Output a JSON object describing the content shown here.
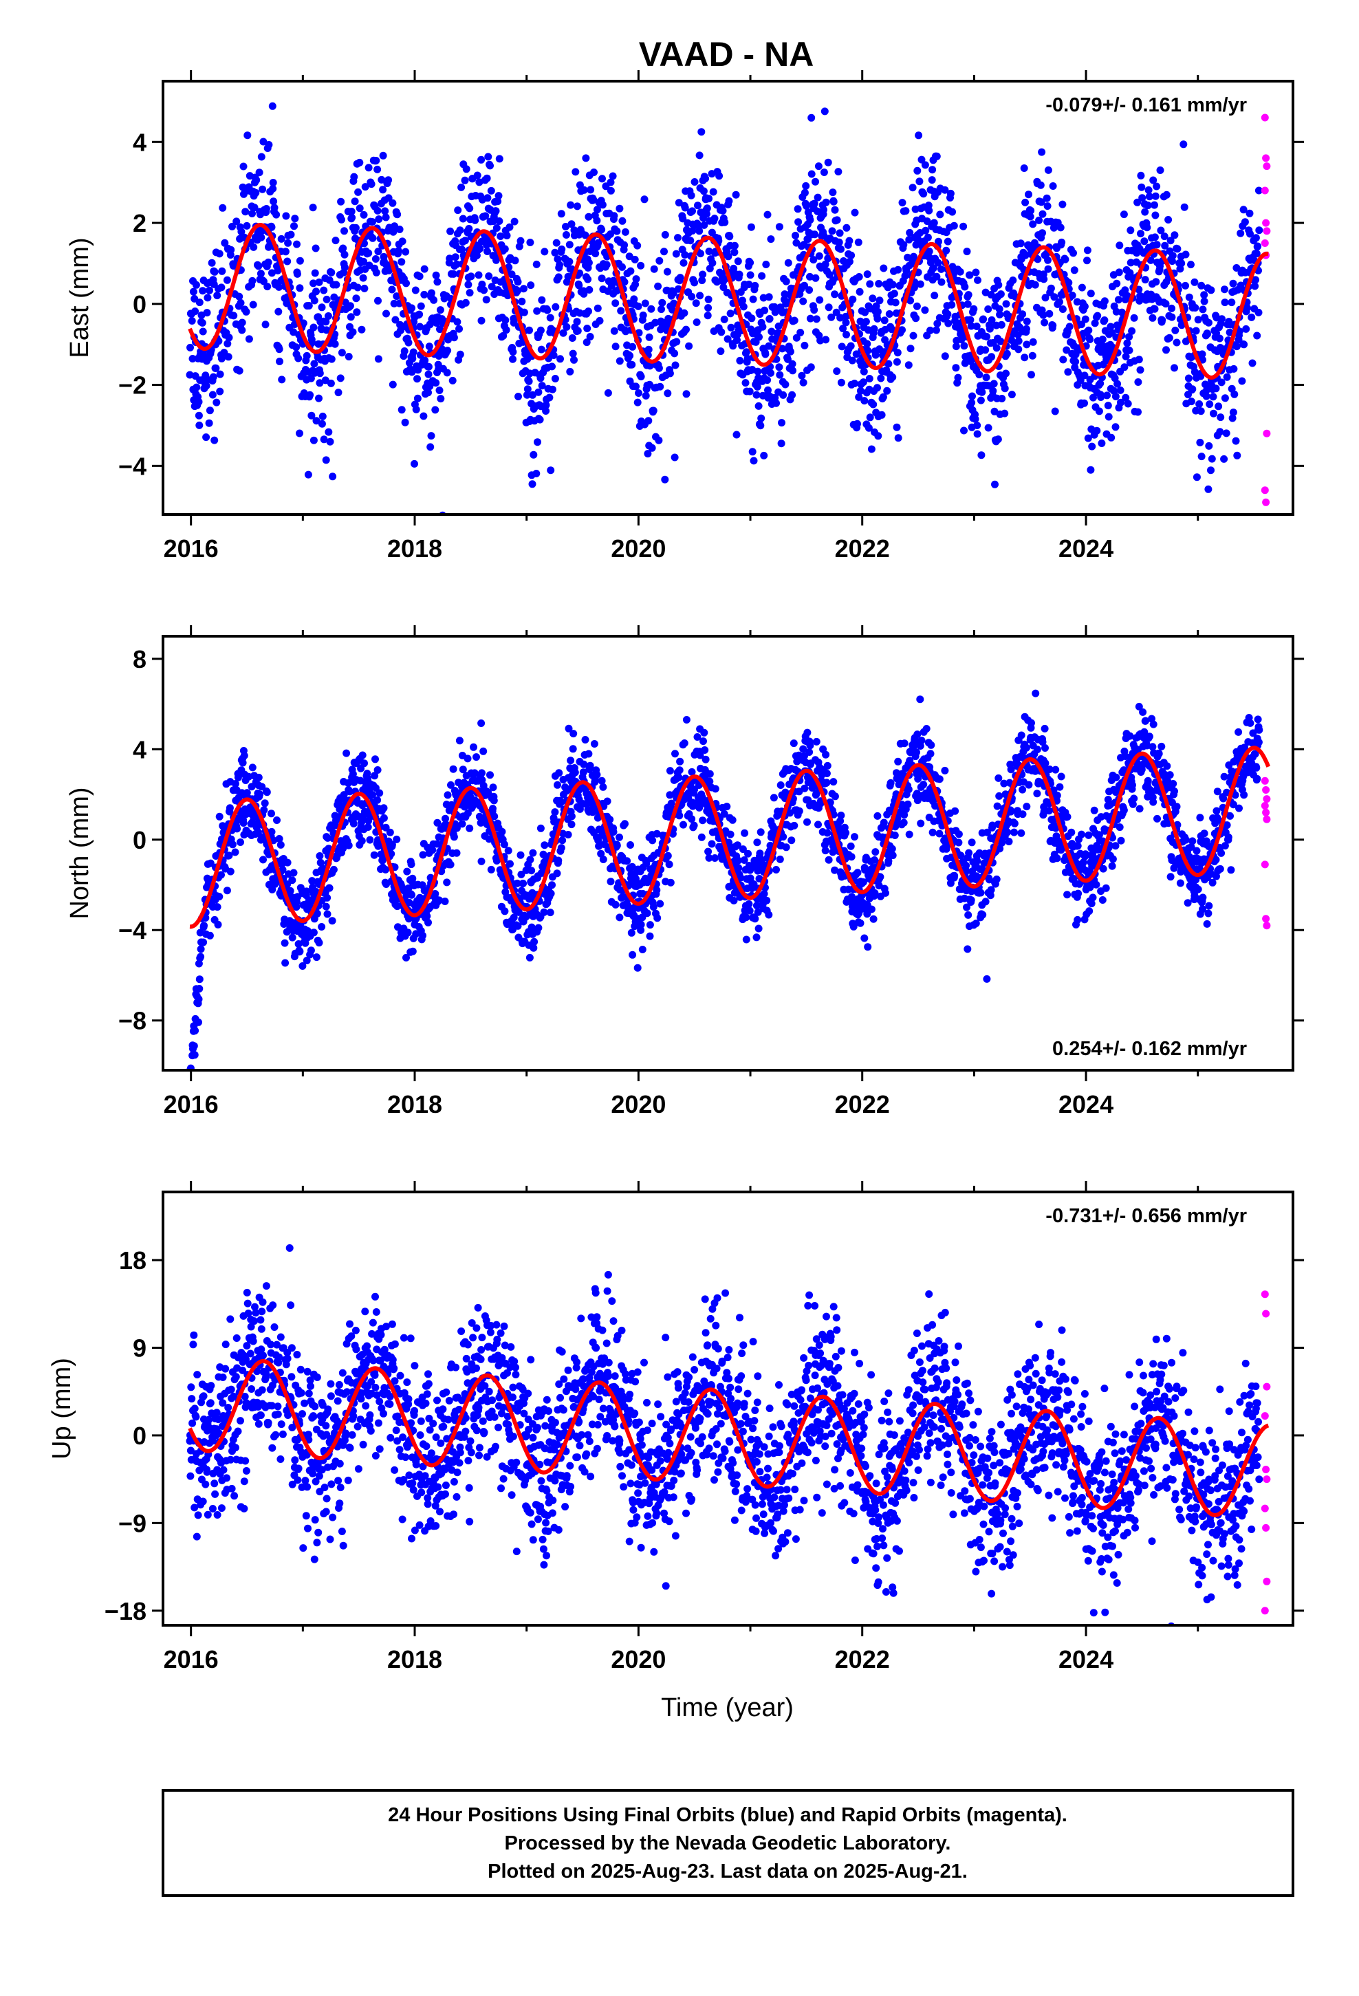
{
  "title": "VAAD - NA",
  "colors": {
    "final": "#0000ff",
    "rapid": "#ff00ff",
    "model": "#ff0000",
    "frame": "#000000"
  },
  "chart_data": [
    {
      "type": "scatter",
      "component": "east",
      "ylabel": "East (mm)",
      "xlabel": "",
      "xlim": [
        2015.75,
        2025.85
      ],
      "ylim": [
        -5.2,
        5.5
      ],
      "xticks": [
        2016,
        2018,
        2020,
        2022,
        2024
      ],
      "yticks": [
        -4,
        -2,
        0,
        2,
        4
      ],
      "rate_text": "-0.079+/- 0.161 mm/yr",
      "rate_position": "top-right",
      "model": {
        "offset": 0.45,
        "trend": -0.079,
        "amplitude": 1.55,
        "peak_phase": 0.62,
        "ref_year": 2016
      },
      "scatter_sd": 1.1,
      "rapid_values": [
        4.6,
        3.6,
        3.4,
        2.8,
        2.0,
        1.8,
        1.5,
        1.2,
        -3.2,
        -4.6,
        -4.9
      ],
      "series": [
        {
          "name": "Final Orbits",
          "color": "#0000ff"
        },
        {
          "name": "Rapid Orbits",
          "color": "#ff00ff"
        },
        {
          "name": "Model",
          "color": "#ff0000"
        }
      ]
    },
    {
      "type": "scatter",
      "component": "north",
      "ylabel": "North (mm)",
      "xlabel": "",
      "xlim": [
        2015.75,
        2025.85
      ],
      "ylim": [
        -10.2,
        9.0
      ],
      "xticks": [
        2016,
        2018,
        2020,
        2022,
        2024
      ],
      "yticks": [
        -8,
        -4,
        0,
        4,
        8
      ],
      "rate_text": "0.254+/- 0.162 mm/yr",
      "rate_position": "bottom-right",
      "model": {
        "offset": -1.1,
        "trend": 0.254,
        "amplitude": 2.75,
        "peak_phase": 0.5,
        "ref_year": 2016
      },
      "scatter_sd": 1.0,
      "rapid_values": [
        2.6,
        2.2,
        1.8,
        1.5,
        1.2,
        0.9,
        -1.1,
        -3.5,
        -3.8
      ],
      "series": [
        {
          "name": "Final Orbits",
          "color": "#0000ff"
        },
        {
          "name": "Rapid Orbits",
          "color": "#ff00ff"
        },
        {
          "name": "Model",
          "color": "#ff0000"
        }
      ]
    },
    {
      "type": "scatter",
      "component": "up",
      "ylabel": "Up (mm)",
      "xlabel": "Time (year)",
      "xlim": [
        2015.75,
        2025.85
      ],
      "ylim": [
        -19.5,
        25.0
      ],
      "xticks": [
        2016,
        2018,
        2020,
        2022,
        2024
      ],
      "yticks": [
        -18,
        -9,
        0,
        9,
        18
      ],
      "rate_text": "-0.731+/- 0.656 mm/yr",
      "rate_position": "top-right",
      "model": {
        "offset": 3.3,
        "trend": -0.731,
        "amplitude": 4.8,
        "peak_phase": 0.65,
        "ref_year": 2016
      },
      "scatter_sd": 4.2,
      "rapid_values": [
        14.5,
        12.5,
        5.0,
        2.0,
        -3.5,
        -4.5,
        -7.5,
        -9.5,
        -15.0,
        -18.0
      ],
      "series": [
        {
          "name": "Final Orbits",
          "color": "#0000ff"
        },
        {
          "name": "Rapid Orbits",
          "color": "#ff00ff"
        },
        {
          "name": "Model",
          "color": "#ff0000"
        }
      ]
    }
  ],
  "footer": {
    "line1": "24 Hour Positions Using Final Orbits (blue) and Rapid Orbits (magenta).",
    "line2": "Processed by the Nevada Geodetic Laboratory.",
    "line3": "Plotted on 2025-Aug-23. Last data on 2025-Aug-21."
  }
}
